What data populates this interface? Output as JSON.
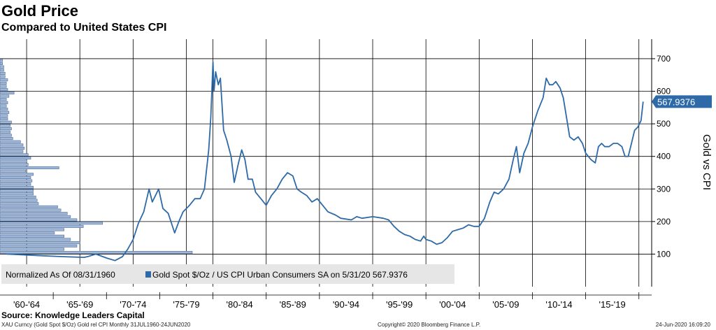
{
  "header": {
    "title": "Gold Price",
    "subtitle": "Compared to United States CPI"
  },
  "footer": {
    "source": "Source: Knowledge Leaders Capital",
    "ticker_line": "XAU Curncy (Gold Spot  $/Oz) Gold rel CPI  Monthly 31JUL1960-24JUN2020",
    "copyright": "Copyright© 2020 Bloomberg Finance L.P.",
    "timestamp": "24-Jun-2020 16:09:20"
  },
  "colors": {
    "series": "#2e6aa8",
    "histogram_fill": "#9fb6d6",
    "histogram_stroke": "#4f6f9c",
    "grid": "#000000",
    "legend_bg": "#e6e6e6",
    "last_value_bg": "#2e6aa8"
  },
  "chart_data": {
    "type": "line",
    "title": "Gold Price",
    "subtitle": "Compared to United States CPI",
    "ylabel": "Gold vs CPI",
    "ylim": [
      0,
      760
    ],
    "xlim": [
      1960,
      2021.2
    ],
    "y_ticks": [
      100,
      200,
      300,
      400,
      500,
      600,
      700
    ],
    "x_tick_labels": [
      "'60-'64",
      "'65-'69",
      "'70-'74",
      "'75-'79",
      "'80-'84",
      "'85-'89",
      "'90-'94",
      "'95-'99",
      "'00-'04",
      "'05-'09",
      "'10-'14",
      "'15-'19"
    ],
    "x_gridlines": [
      1962.5,
      1967.5,
      1972.5,
      1977.5,
      1980,
      1985,
      1990,
      1995,
      2000,
      2005,
      2010,
      2015,
      2020
    ],
    "grid": true,
    "legend": {
      "position": "bottom-left",
      "note": "Normalized As Of 08/31/1960",
      "entry": "Gold Spot $/Oz / US CPI Urban Consumers SA on 5/31/20 567.9376"
    },
    "last_value_label": "567.9376",
    "series": [
      {
        "name": "Gold Spot $/Oz / US CPI Urban Consumers SA",
        "x": [
          1960.6,
          1962,
          1964,
          1966,
          1967.9,
          1968.3,
          1969,
          1970,
          1970.8,
          1971.5,
          1972,
          1972.5,
          1973,
          1973.5,
          1974,
          1974.3,
          1974.9,
          1975.3,
          1975.8,
          1976.4,
          1976.8,
          1977.2,
          1977.8,
          1978.3,
          1978.8,
          1979.2,
          1979.6,
          1979.8,
          1980.0,
          1980.1,
          1980.25,
          1980.5,
          1980.7,
          1981.0,
          1981.3,
          1981.7,
          1982.0,
          1982.4,
          1982.7,
          1983.0,
          1983.3,
          1983.7,
          1984.0,
          1984.5,
          1985.0,
          1985.5,
          1986.0,
          1986.5,
          1987.0,
          1987.5,
          1987.9,
          1988.3,
          1988.8,
          1989.3,
          1989.8,
          1990.3,
          1990.8,
          1991.5,
          1992.0,
          1993.0,
          1993.5,
          1994.0,
          1995.0,
          1996.0,
          1996.5,
          1997.0,
          1997.5,
          1998.0,
          1998.5,
          1999.0,
          1999.5,
          1999.8,
          2000.0,
          2000.5,
          2001.0,
          2001.5,
          2002.0,
          2002.5,
          2003.0,
          2003.5,
          2004.0,
          2004.5,
          2005.0,
          2005.5,
          2006.0,
          2006.4,
          2006.8,
          2007.3,
          2007.8,
          2008.2,
          2008.5,
          2008.8,
          2009.2,
          2009.6,
          2010.0,
          2010.5,
          2011.0,
          2011.3,
          2011.6,
          2011.9,
          2012.2,
          2012.6,
          2012.9,
          2013.2,
          2013.5,
          2013.9,
          2014.3,
          2014.7,
          2015.0,
          2015.5,
          2015.9,
          2016.2,
          2016.5,
          2016.8,
          2017.2,
          2017.6,
          2018.0,
          2018.4,
          2018.7,
          2019.0,
          2019.3,
          2019.6,
          2019.9,
          2020.2,
          2020.4
        ],
        "values": [
          100,
          98,
          95,
          92,
          90,
          93,
          100,
          88,
          80,
          92,
          115,
          145,
          195,
          230,
          300,
          260,
          300,
          240,
          225,
          165,
          200,
          230,
          250,
          270,
          270,
          300,
          420,
          520,
          690,
          600,
          660,
          620,
          640,
          480,
          450,
          400,
          320,
          380,
          420,
          390,
          330,
          330,
          290,
          270,
          250,
          280,
          300,
          330,
          350,
          340,
          300,
          290,
          280,
          260,
          270,
          250,
          230,
          220,
          210,
          205,
          215,
          210,
          215,
          210,
          205,
          185,
          170,
          160,
          155,
          145,
          140,
          155,
          145,
          140,
          130,
          135,
          150,
          170,
          175,
          180,
          190,
          185,
          185,
          210,
          260,
          290,
          285,
          300,
          330,
          390,
          430,
          350,
          410,
          440,
          490,
          540,
          580,
          640,
          620,
          620,
          630,
          610,
          580,
          520,
          460,
          450,
          460,
          440,
          410,
          390,
          380,
          430,
          440,
          430,
          430,
          440,
          440,
          430,
          400,
          400,
          440,
          480,
          490,
          510,
          568
        ]
      }
    ],
    "histogram": {
      "bins": [
        100,
        110,
        120,
        130,
        140,
        150,
        160,
        170,
        180,
        190,
        200,
        210,
        220,
        230,
        240,
        250,
        260,
        270,
        280,
        290,
        300,
        310,
        320,
        330,
        340,
        350,
        360,
        370,
        380,
        390,
        400,
        410,
        420,
        430,
        440,
        450,
        460,
        470,
        480,
        490,
        500,
        510,
        520,
        530,
        540,
        550,
        560,
        570,
        580,
        590,
        600,
        610,
        620,
        630,
        640,
        650,
        660,
        670,
        680,
        690
      ],
      "counts": [
        300,
        100,
        120,
        125,
        110,
        100,
        85,
        100,
        130,
        160,
        120,
        110,
        105,
        95,
        90,
        60,
        58,
        56,
        52,
        52,
        52,
        48,
        50,
        48,
        52,
        40,
        92,
        44,
        42,
        48,
        44,
        36,
        38,
        36,
        32,
        20,
        18,
        16,
        18,
        16,
        18,
        12,
        12,
        14,
        12,
        10,
        12,
        10,
        14,
        22,
        12,
        10,
        10,
        12,
        8,
        8,
        6,
        6,
        4,
        4
      ]
    }
  }
}
